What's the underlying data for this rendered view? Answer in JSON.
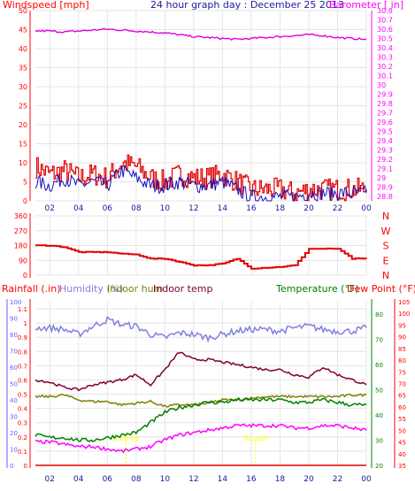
{
  "chart_data": [
    {
      "type": "line",
      "title": "24 hour graph day : December 25 2013",
      "left_axis_label": "Windspeed [mph]",
      "right_axis_label": "Barometer [ in]",
      "x_ticks": [
        "02",
        "04",
        "06",
        "08",
        "10",
        "12",
        "14",
        "16",
        "18",
        "20",
        "22",
        "00"
      ],
      "left_ylim": [
        0,
        50
      ],
      "left_ticks": [
        "0",
        "5",
        "10",
        "15",
        "20",
        "25",
        "30",
        "35",
        "40",
        "45",
        "50"
      ],
      "right_ylim": [
        28.75,
        30.8
      ],
      "right_ticks": [
        "28.8",
        "28.9",
        "29",
        "29.1",
        "29.2",
        "29.3",
        "29.4",
        "29.5",
        "29.6",
        "29.7",
        "29.8",
        "29.9",
        "30",
        "30.1",
        "30.2",
        "30.3",
        "30.4",
        "30.5",
        "30.6",
        "30.7",
        "30.8"
      ],
      "x": [
        1,
        2,
        3,
        4,
        5,
        6,
        7,
        8,
        9,
        10,
        11,
        12,
        13,
        14,
        15,
        16,
        17,
        18,
        19,
        20,
        21,
        22,
        23,
        24
      ],
      "series": [
        {
          "axis": "left",
          "color": "#e00000",
          "values": [
            9,
            7,
            8,
            6,
            7,
            6,
            10,
            9,
            6,
            5,
            7,
            6,
            6,
            7,
            5,
            3,
            3,
            3,
            2,
            3,
            3,
            3,
            3,
            3
          ]
        },
        {
          "axis": "left",
          "color": "#1010c0",
          "values": [
            5,
            4,
            6,
            4,
            5,
            4,
            8,
            6,
            4,
            4,
            5,
            4,
            4,
            5,
            3,
            1,
            1,
            1,
            1,
            2,
            2,
            2,
            2,
            2
          ]
        },
        {
          "axis": "right",
          "color": "#e000e0",
          "values": [
            30.58,
            30.58,
            30.57,
            30.58,
            30.59,
            30.6,
            30.59,
            30.58,
            30.57,
            30.56,
            30.54,
            30.52,
            30.51,
            30.5,
            30.49,
            30.5,
            30.51,
            30.52,
            30.53,
            30.54,
            30.53,
            30.51,
            30.5,
            30.49
          ]
        }
      ]
    },
    {
      "type": "line",
      "left_ticks": [
        "0",
        "90",
        "180",
        "270",
        "360"
      ],
      "right_labels": [
        "N",
        "W",
        "S",
        "E",
        "N"
      ],
      "ylim": [
        0,
        360
      ],
      "x": [
        1,
        2,
        3,
        4,
        5,
        6,
        7,
        8,
        9,
        10,
        11,
        12,
        13,
        14,
        15,
        16,
        17,
        18,
        19,
        20,
        21,
        22,
        23,
        24
      ],
      "series": [
        {
          "color": "#e00000",
          "values": [
            180,
            180,
            170,
            140,
            140,
            140,
            130,
            125,
            100,
            100,
            80,
            60,
            60,
            70,
            100,
            40,
            45,
            50,
            60,
            160,
            160,
            160,
            100,
            100
          ]
        }
      ]
    },
    {
      "type": "line",
      "legend_left": [
        "Rainfall (.in)",
        "Humidity (%)",
        "Indoor hum",
        "Indoor temp"
      ],
      "legend_right": [
        "Temperature (°F)",
        "Dew Point (°F)"
      ],
      "x_ticks": [
        "02",
        "04",
        "06",
        "08",
        "10",
        "12",
        "14",
        "16",
        "18",
        "20",
        "22",
        "00"
      ],
      "rain_ticks": [
        "0",
        "0.1",
        "0.2",
        "0.3",
        "0.4",
        "0.5",
        "0.6",
        "0.7",
        "0.8",
        "0.9",
        "1",
        "1.1"
      ],
      "rain_ylim": [
        0,
        1.15
      ],
      "hum_ticks": [
        "0",
        "10",
        "20",
        "30",
        "40",
        "50",
        "60",
        "70",
        "80",
        "90",
        "100"
      ],
      "hum_ylim": [
        0,
        100
      ],
      "temp_ticks": [
        "20",
        "30",
        "40",
        "50",
        "60",
        "70",
        "80"
      ],
      "temp_ylim": [
        20,
        85
      ],
      "dew_ticks": [
        "35",
        "40",
        "45",
        "50",
        "55",
        "60",
        "65",
        "70",
        "75",
        "80",
        "85",
        "90",
        "95",
        "100",
        "105"
      ],
      "dew_ylim": [
        35,
        105
      ],
      "x": [
        1,
        2,
        3,
        4,
        5,
        6,
        7,
        8,
        9,
        10,
        11,
        12,
        13,
        14,
        15,
        16,
        17,
        18,
        19,
        20,
        21,
        22,
        23,
        24
      ],
      "series": [
        {
          "name": "Rainfall (.in)",
          "axis": "rain",
          "color": "#e00000",
          "values": [
            0,
            0,
            0,
            0,
            0,
            0,
            0,
            0,
            0,
            0,
            0,
            0,
            0,
            0,
            0,
            0,
            0,
            0,
            0,
            0,
            0,
            0,
            0,
            0
          ]
        },
        {
          "name": "Humidity (%)",
          "axis": "hum",
          "color": "#8080e0",
          "values": [
            84,
            84,
            83,
            80,
            85,
            89,
            86,
            85,
            80,
            78,
            81,
            80,
            78,
            80,
            82,
            83,
            83,
            82,
            84,
            85,
            83,
            82,
            82,
            84
          ]
        },
        {
          "name": "Indoor hum",
          "axis": "hum",
          "color": "#808000",
          "values": [
            42,
            42,
            43,
            40,
            39,
            39,
            37,
            38,
            39,
            36,
            37,
            37,
            38,
            40,
            40,
            41,
            42,
            42,
            42,
            42,
            42,
            42,
            43,
            43
          ]
        },
        {
          "name": "Indoor temp",
          "axis": "temp",
          "color": "#800030",
          "values": [
            54,
            53,
            51,
            50,
            52,
            53,
            54,
            56,
            52,
            58,
            65,
            62,
            62,
            61,
            60,
            59,
            58,
            58,
            56,
            55,
            59,
            56,
            54,
            52
          ]
        },
        {
          "name": "Temperature (°F)",
          "axis": "temp",
          "color": "#008000",
          "values": [
            32,
            31,
            31,
            30,
            30,
            31,
            32,
            33,
            37,
            41,
            43,
            44,
            45,
            45,
            46,
            46,
            46,
            46,
            45,
            45,
            46,
            45,
            44,
            44
          ]
        },
        {
          "name": "Dew Point (°F)",
          "axis": "dew",
          "color": "#ff00ff",
          "values": [
            45,
            45,
            44,
            43,
            43,
            42,
            41,
            42,
            43,
            46,
            48,
            49,
            50,
            51,
            52,
            52,
            52,
            52,
            51,
            51,
            52,
            52,
            51,
            50
          ]
        }
      ],
      "annotations": [
        {
          "x": 7.3,
          "text": "Sunrise",
          "color": "#ffff00"
        },
        {
          "x": 16.3,
          "text": "Sunset",
          "color": "#ffff00"
        }
      ]
    }
  ]
}
